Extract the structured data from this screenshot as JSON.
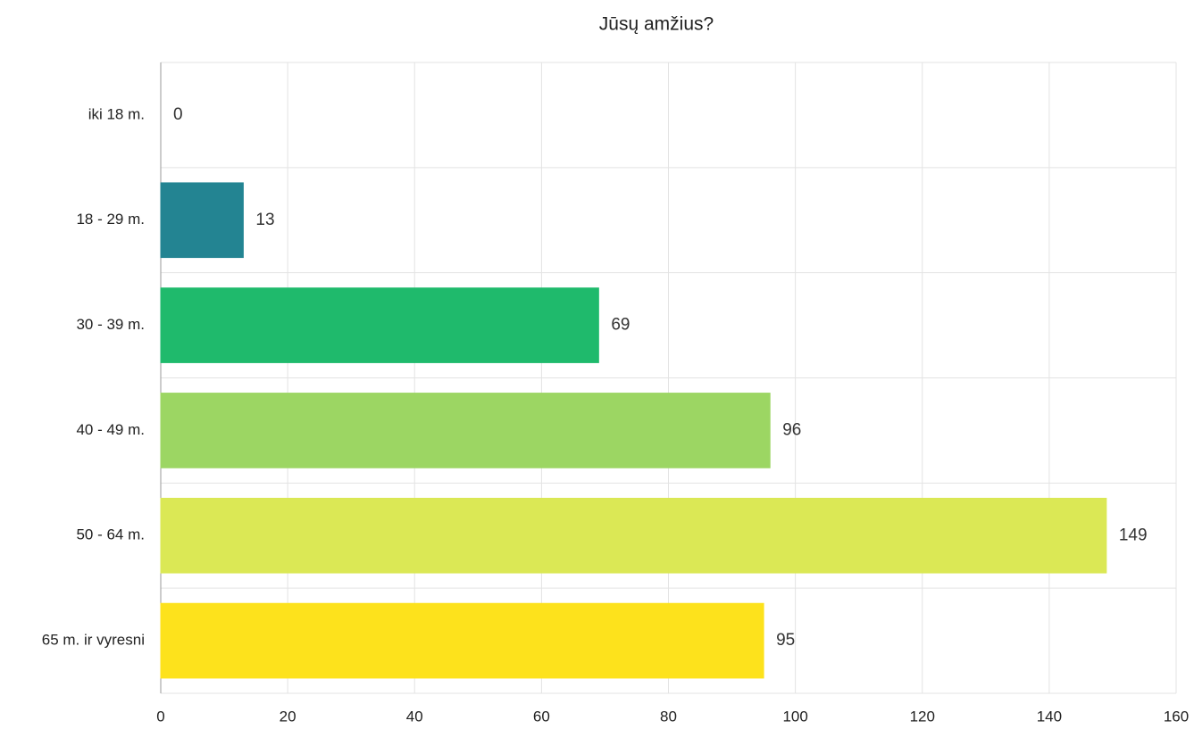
{
  "chart_data": {
    "type": "bar",
    "orientation": "horizontal",
    "title": "Jūsų amžius?",
    "categories": [
      "iki 18 m.",
      "18 - 29 m.",
      "30 - 39 m.",
      "40 - 49 m.",
      "50 - 64 m.",
      "65 m. ir vyresni"
    ],
    "values": [
      0,
      13,
      69,
      96,
      149,
      95
    ],
    "colors": [
      "#3a5ea8",
      "#238492",
      "#1fba6c",
      "#9cd663",
      "#dbe855",
      "#fde21c"
    ],
    "xlim": [
      0,
      160
    ],
    "xticks": [
      0,
      20,
      40,
      60,
      80,
      100,
      120,
      140,
      160
    ],
    "grid": true
  }
}
